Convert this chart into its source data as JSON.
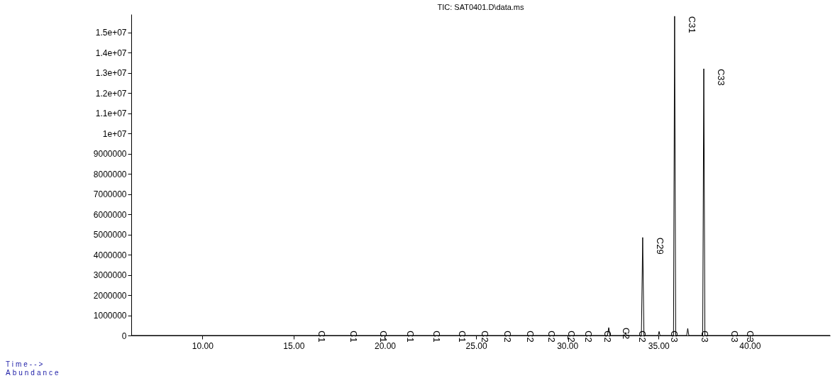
{
  "chart_data": {
    "type": "line",
    "title": "TIC: SAT0401.D\\data.ms",
    "x": [
      6.1,
      32.2,
      32.27,
      32.34,
      33.15,
      33.2,
      33.25,
      34.06,
      34.13,
      34.2,
      34.98,
      35.03,
      35.08,
      35.82,
      35.88,
      35.94,
      36.54,
      36.6,
      36.66,
      37.42,
      37.48,
      37.54,
      44.4
    ],
    "series": [
      {
        "color": "#000000",
        "values": [
          0,
          0,
          390000,
          0,
          0,
          150000,
          0,
          0,
          4850000,
          0,
          0,
          200000,
          0,
          0,
          15800000,
          0,
          0,
          350000,
          0,
          0,
          13200000,
          0,
          0
        ]
      }
    ],
    "xlim": [
      6.1,
      44.4
    ],
    "xticks": [
      {
        "value": 10,
        "label": "10.00"
      },
      {
        "value": 15,
        "label": "15.00"
      },
      {
        "value": 20,
        "label": "20.00"
      },
      {
        "value": 25,
        "label": "25.00"
      },
      {
        "value": 30,
        "label": "30.00"
      },
      {
        "value": 35,
        "label": "35.00"
      },
      {
        "value": 40,
        "label": "40.00"
      }
    ],
    "ylim": [
      0,
      15900000
    ],
    "yticks": [
      0,
      1000000,
      2000000,
      3000000,
      4000000,
      5000000,
      6000000,
      7000000,
      8000000,
      9000000,
      {
        "value": 10000000,
        "label": "1e+07"
      },
      {
        "value": 11000000,
        "label": "1.1e+07"
      },
      {
        "value": 12000000,
        "label": "1.2e+07"
      },
      {
        "value": 13000000,
        "label": "1.3e+07"
      },
      {
        "value": 14000000,
        "label": "1.4e+07"
      },
      {
        "value": 15000000,
        "label": "1.5e+07"
      }
    ],
    "grid": false,
    "marker": "none",
    "line_style": "solid",
    "annotations": [
      {
        "text": "C1",
        "x": 16.53,
        "y": 0
      },
      {
        "text": "C1",
        "x": 18.28,
        "y": 0
      },
      {
        "text": "C1",
        "x": 19.91,
        "y": 0
      },
      {
        "text": "C1",
        "x": 21.39,
        "y": 0
      },
      {
        "text": "C1",
        "x": 22.83,
        "y": 0
      },
      {
        "text": "C1",
        "x": 24.22,
        "y": 0
      },
      {
        "text": "C2",
        "x": 25.47,
        "y": 0
      },
      {
        "text": "C2",
        "x": 26.71,
        "y": 0
      },
      {
        "text": "C2",
        "x": 27.96,
        "y": 0
      },
      {
        "text": "C2",
        "x": 29.12,
        "y": 0
      },
      {
        "text": "C2",
        "x": 30.21,
        "y": 0
      },
      {
        "text": "C2",
        "x": 31.14,
        "y": 0
      },
      {
        "text": "C2",
        "x": 32.19,
        "y": 0
      },
      {
        "text": "C2",
        "x": 33.2,
        "y": 150000
      },
      {
        "text": "C2",
        "x": 34.1,
        "y": 0
      },
      {
        "text": "C3",
        "x": 35.85,
        "y": 0
      },
      {
        "text": "C3",
        "x": 37.52,
        "y": 0
      },
      {
        "text": "C3",
        "x": 39.15,
        "y": 0
      },
      {
        "text": "C3",
        "x": 40.0,
        "y": 0
      },
      {
        "text": "C29",
        "x": 34.13,
        "y": 4850000
      },
      {
        "text": "C31",
        "x": 35.88,
        "y": 15800000
      },
      {
        "text": "C33",
        "x": 37.48,
        "y": 13200000
      },
      "Time-->",
      "Abundance"
    ]
  }
}
